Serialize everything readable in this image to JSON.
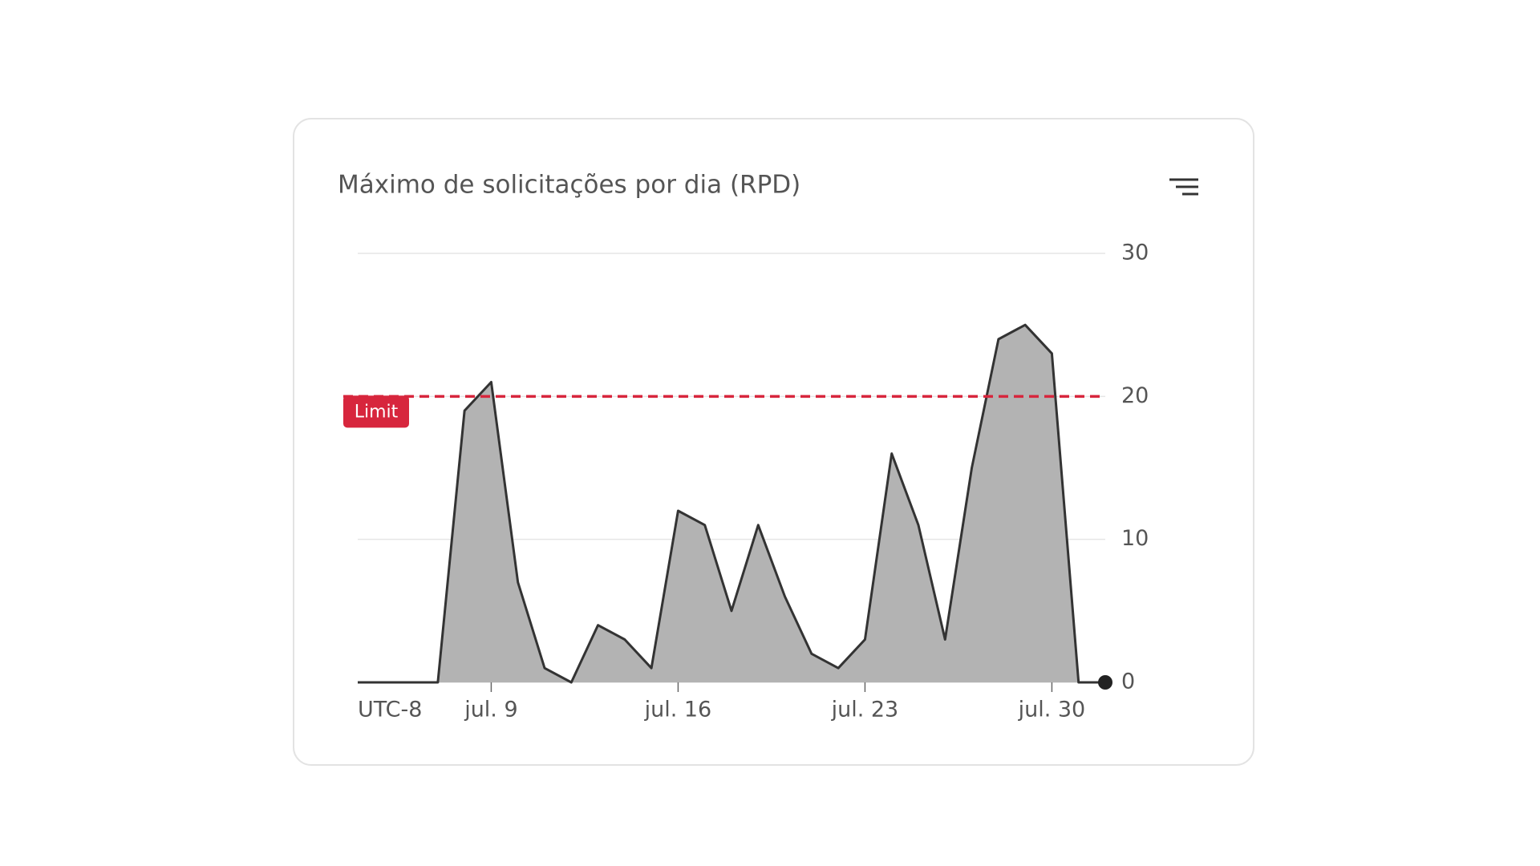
{
  "chart_data": {
    "type": "area",
    "title": "Máximo de solicitações por dia (RPD)",
    "timezone_label": "UTC-8",
    "categories": [
      null,
      null,
      null,
      null,
      null,
      "jul. 9",
      null,
      null,
      null,
      null,
      null,
      null,
      "jul. 16",
      null,
      null,
      null,
      null,
      null,
      null,
      "jul. 23",
      null,
      null,
      null,
      null,
      null,
      null,
      "jul. 30",
      null,
      null
    ],
    "values": [
      0,
      0,
      0,
      0,
      19,
      21,
      7,
      1,
      0,
      4,
      3,
      1,
      12,
      11,
      5,
      11,
      6,
      2,
      1,
      3,
      16,
      11,
      3,
      15,
      24,
      25,
      23,
      0,
      0
    ],
    "color": "#b3b3b3",
    "line_color": "#333333",
    "ylim": [
      0,
      30
    ],
    "yticks": [
      0,
      10,
      20,
      30
    ],
    "grid": true,
    "limit": {
      "value": 20,
      "label": "Limit",
      "color": "#d7263d"
    }
  }
}
